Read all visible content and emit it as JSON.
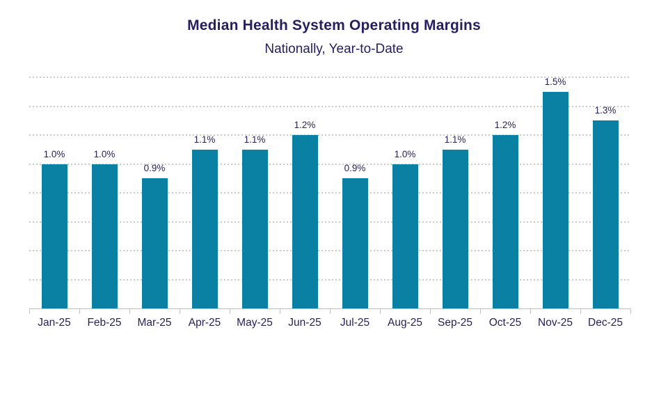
{
  "chart_data": {
    "type": "bar",
    "title": "Median Health System Operating Margins",
    "subtitle": "Nationally, Year-to-Date",
    "categories": [
      "Jan-25",
      "Feb-25",
      "Mar-25",
      "Apr-25",
      "May-25",
      "Jun-25",
      "Jul-25",
      "Aug-25",
      "Sep-25",
      "Oct-25",
      "Nov-25",
      "Dec-25"
    ],
    "values": [
      1.0,
      1.0,
      0.9,
      1.1,
      1.1,
      1.2,
      0.9,
      1.0,
      1.1,
      1.2,
      1.5,
      1.3
    ],
    "data_labels": [
      "1.0%",
      "1.0%",
      "0.9%",
      "1.1%",
      "1.1%",
      "1.2%",
      "0.9%",
      "1.0%",
      "1.1%",
      "1.2%",
      "1.5%",
      "1.3%"
    ],
    "xlabel": "",
    "ylabel": "",
    "ylim": [
      0,
      1.6
    ],
    "grid_step": 0.2,
    "grid": "dotted horizontal",
    "legend": false,
    "y_axis_labels_visible": false,
    "bar_color": "#0A80A2",
    "text_color": "#241F5E",
    "gridline_color": "#C9C9C9",
    "axis_color": "#BFBFBF"
  }
}
